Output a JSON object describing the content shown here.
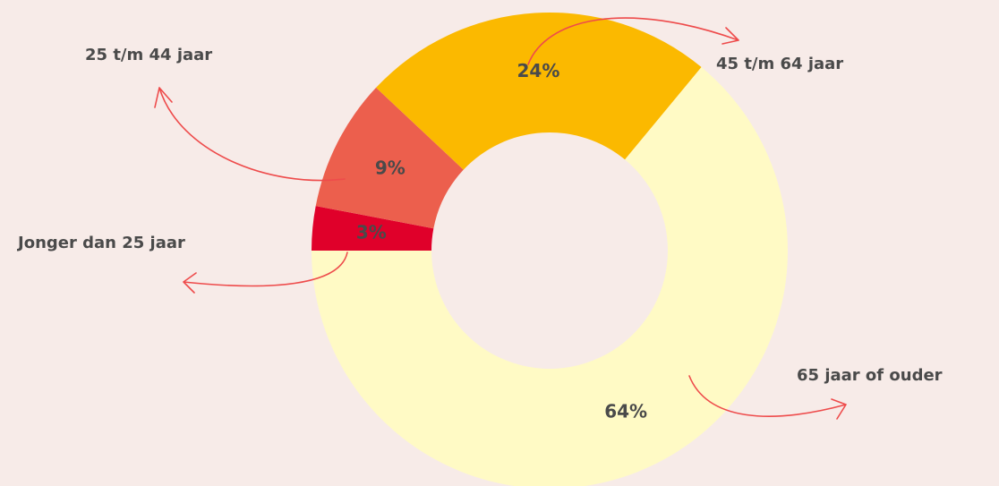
{
  "chart_data": {
    "type": "donut",
    "categories": [
      "Jonger dan 25 jaar",
      "25 t/m 44 jaar",
      "45 t/m 64 jaar",
      "65 jaar of ouder"
    ],
    "values": [
      3,
      9,
      24,
      64
    ],
    "value_labels": [
      "3%",
      "9%",
      "24%",
      "64%"
    ],
    "colors": [
      "#e0002a",
      "#ec5f4d",
      "#fbb900",
      "#fffac5"
    ]
  }
}
